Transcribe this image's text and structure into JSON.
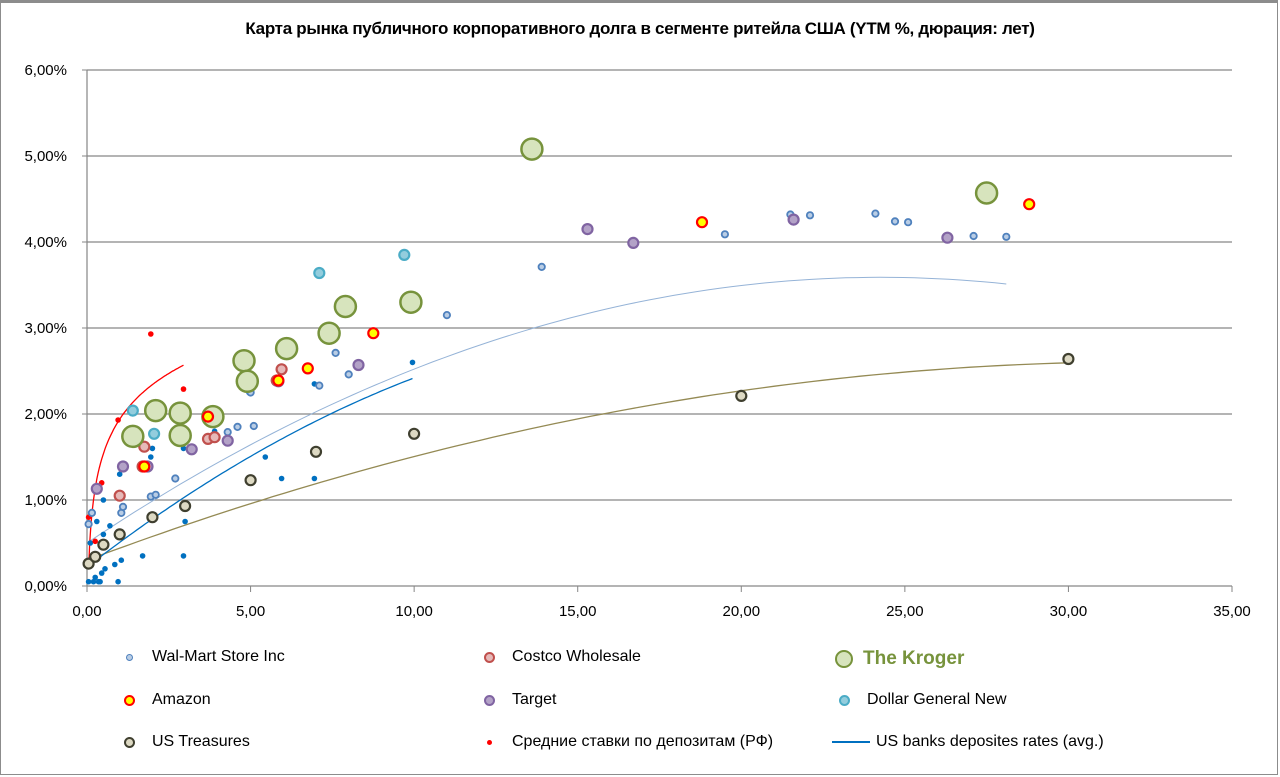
{
  "chart_data": {
    "type": "scatter",
    "title": "Карта рынка публичного корпоративного долга в сегменте ритейла США (YTM %, дюрация: лет)",
    "xlabel": "",
    "ylabel": "",
    "xlim": [
      0,
      35
    ],
    "ylim": [
      0,
      6
    ],
    "x_ticks": [
      "0,00",
      "5,00",
      "10,00",
      "15,00",
      "20,00",
      "25,00",
      "30,00",
      "35,00"
    ],
    "y_ticks": [
      "0,00%",
      "1,00%",
      "2,00%",
      "3,00%",
      "4,00%",
      "5,00%",
      "6,00%"
    ],
    "grid": "horizontal",
    "legend_position": "bottom",
    "series": [
      {
        "name": "Wal-Mart Store Inc",
        "key": "walmart",
        "fill": "#b9cde5",
        "stroke": "#4f81bd",
        "size": "small",
        "points": [
          [
            0.05,
            0.72
          ],
          [
            0.15,
            0.85
          ],
          [
            1.05,
            0.85
          ],
          [
            1.1,
            0.92
          ],
          [
            1.95,
            1.04
          ],
          [
            2.1,
            1.06
          ],
          [
            2.7,
            1.25
          ],
          [
            4.3,
            1.79
          ],
          [
            4.6,
            1.85
          ],
          [
            5.1,
            1.86
          ],
          [
            5.0,
            2.25
          ],
          [
            7.1,
            2.33
          ],
          [
            8.0,
            2.46
          ],
          [
            7.6,
            2.71
          ],
          [
            11.0,
            3.15
          ],
          [
            13.9,
            3.71
          ],
          [
            19.5,
            4.09
          ],
          [
            21.5,
            4.32
          ],
          [
            22.1,
            4.31
          ],
          [
            24.1,
            4.33
          ],
          [
            24.7,
            4.24
          ],
          [
            25.1,
            4.23
          ],
          [
            27.1,
            4.07
          ],
          [
            28.1,
            4.06
          ]
        ]
      },
      {
        "name": "Costco Wholesale",
        "key": "costco",
        "fill": "#e6b9b8",
        "stroke": "#c0504d",
        "size": "medium",
        "points": [
          [
            1.0,
            1.05
          ],
          [
            1.7,
            1.39
          ],
          [
            1.75,
            1.62
          ],
          [
            3.7,
            1.71
          ],
          [
            3.9,
            1.73
          ],
          [
            5.8,
            2.39
          ],
          [
            5.95,
            2.52
          ]
        ]
      },
      {
        "name": "The Kroger",
        "key": "kroger",
        "fill": "#d7e4bd",
        "stroke": "#77933c",
        "size": "large",
        "points": [
          [
            1.4,
            1.74
          ],
          [
            2.1,
            2.04
          ],
          [
            2.85,
            2.01
          ],
          [
            2.85,
            1.75
          ],
          [
            3.85,
            1.97
          ],
          [
            4.8,
            2.62
          ],
          [
            4.9,
            2.38
          ],
          [
            6.1,
            2.76
          ],
          [
            7.4,
            2.94
          ],
          [
            7.9,
            3.25
          ],
          [
            9.9,
            3.3
          ],
          [
            13.6,
            5.08
          ],
          [
            27.5,
            4.57
          ]
        ]
      },
      {
        "name": "Amazon",
        "key": "amazon",
        "fill": "#ffff00",
        "stroke": "#ff0000",
        "size": "medium",
        "points": [
          [
            1.75,
            1.39
          ],
          [
            3.7,
            1.97
          ],
          [
            5.85,
            2.39
          ],
          [
            6.75,
            2.53
          ],
          [
            8.75,
            2.94
          ],
          [
            18.8,
            4.23
          ],
          [
            28.8,
            4.44
          ]
        ]
      },
      {
        "name": "Target",
        "key": "target",
        "fill": "#b3a2c7",
        "stroke": "#8064a2",
        "size": "medium",
        "points": [
          [
            0.3,
            1.13
          ],
          [
            1.1,
            1.39
          ],
          [
            1.85,
            1.39
          ],
          [
            3.2,
            1.59
          ],
          [
            4.3,
            1.69
          ],
          [
            5.85,
            2.38
          ],
          [
            8.3,
            2.57
          ],
          [
            15.3,
            4.15
          ],
          [
            16.7,
            3.99
          ],
          [
            21.6,
            4.26
          ],
          [
            26.3,
            4.05
          ]
        ]
      },
      {
        "name": "Dollar General New",
        "key": "dollar_general",
        "fill": "#93cddd",
        "stroke": "#4bacc6",
        "size": "medium",
        "points": [
          [
            1.4,
            2.04
          ],
          [
            2.05,
            1.77
          ],
          [
            7.1,
            3.64
          ],
          [
            9.7,
            3.85
          ]
        ]
      },
      {
        "name": "US Treasures",
        "key": "us_treasures",
        "fill": "#ddd9c3",
        "stroke": "#3f3f2f",
        "size": "medium",
        "points": [
          [
            0.05,
            0.26
          ],
          [
            0.25,
            0.34
          ],
          [
            0.5,
            0.48
          ],
          [
            1.0,
            0.6
          ],
          [
            2.0,
            0.8
          ],
          [
            3.0,
            0.93
          ],
          [
            5.0,
            1.23
          ],
          [
            7.0,
            1.56
          ],
          [
            10.0,
            1.77
          ],
          [
            20.0,
            2.21
          ],
          [
            30.0,
            2.64
          ]
        ]
      },
      {
        "name": "Средние ставки по депозитам (РФ)",
        "key": "rf_deposits",
        "fill": "#ff0000",
        "stroke": "#ff0000",
        "size": "tiny",
        "points": [
          [
            0.05,
            0.8
          ],
          [
            0.25,
            0.52
          ],
          [
            0.45,
            1.2
          ],
          [
            0.95,
            1.93
          ],
          [
            1.95,
            2.93
          ],
          [
            2.95,
            2.29
          ]
        ]
      },
      {
        "name": "US banks deposites rates (avg.)",
        "key": "us_banks",
        "fill": "#0070c0",
        "stroke": "#0070c0",
        "size": "tiny",
        "legend_as_line": true,
        "points": [
          [
            0.05,
            0.05
          ],
          [
            0.1,
            0.5
          ],
          [
            0.2,
            0.05
          ],
          [
            0.25,
            0.1
          ],
          [
            0.3,
            0.75
          ],
          [
            0.35,
            0.05
          ],
          [
            0.4,
            0.05
          ],
          [
            0.45,
            0.15
          ],
          [
            0.5,
            0.6
          ],
          [
            0.5,
            1.0
          ],
          [
            0.55,
            0.2
          ],
          [
            0.7,
            0.7
          ],
          [
            0.85,
            0.25
          ],
          [
            0.95,
            0.05
          ],
          [
            1.0,
            1.3
          ],
          [
            1.05,
            0.3
          ],
          [
            1.7,
            0.35
          ],
          [
            1.95,
            1.5
          ],
          [
            2.0,
            1.6
          ],
          [
            2.95,
            0.35
          ],
          [
            3.0,
            0.75
          ],
          [
            2.95,
            1.6
          ],
          [
            3.9,
            1.8
          ],
          [
            4.95,
            2.25
          ],
          [
            5.45,
            1.5
          ],
          [
            5.95,
            1.25
          ],
          [
            6.95,
            1.25
          ],
          [
            6.95,
            2.35
          ],
          [
            9.95,
            2.6
          ]
        ]
      }
    ],
    "trendlines": [
      {
        "series": "walmart",
        "color": "#95b3d7",
        "x_range": [
          0.05,
          28.1
        ],
        "poly": [
          0.5,
          0.2547,
          -0.00525
        ]
      },
      {
        "series": "us_treasures",
        "color": "#948a54",
        "x_range": [
          0.05,
          30.0
        ],
        "poly": [
          0.3,
          0.1425,
          -0.0022
        ]
      },
      {
        "series": "rf_deposits",
        "color": "#ff0000",
        "type": "log",
        "x_range": [
          0.05,
          2.95
        ],
        "log": [
          1.94,
          0.58
        ]
      },
      {
        "series": "us_banks",
        "color": "#0070c0",
        "x_range": [
          0.05,
          9.95
        ],
        "poly": [
          0.22,
          0.295,
          -0.0075
        ]
      }
    ]
  }
}
